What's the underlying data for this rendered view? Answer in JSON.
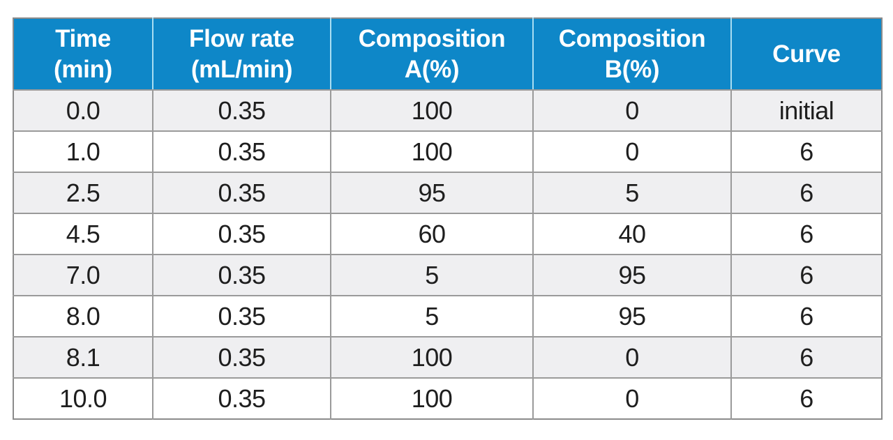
{
  "chart_data": {
    "type": "table",
    "columns": [
      "Time (min)",
      "Flow rate (mL/min)",
      "Composition A(%)",
      "Composition B(%)",
      "Curve"
    ],
    "rows": [
      [
        "0.0",
        "0.35",
        "100",
        "0",
        "initial"
      ],
      [
        "1.0",
        "0.35",
        "100",
        "0",
        "6"
      ],
      [
        "2.5",
        "0.35",
        "95",
        "5",
        "6"
      ],
      [
        "4.5",
        "0.35",
        "60",
        "40",
        "6"
      ],
      [
        "7.0",
        "0.35",
        "5",
        "95",
        "6"
      ],
      [
        "8.0",
        "0.35",
        "5",
        "95",
        "6"
      ],
      [
        "8.1",
        "0.35",
        "100",
        "0",
        "6"
      ],
      [
        "10.0",
        "0.35",
        "100",
        "0",
        "6"
      ]
    ],
    "layout": {
      "header_rows": 1,
      "striping": "odd-rows-gray",
      "grid": true
    }
  },
  "table": {
    "headers": [
      {
        "line1": "Time",
        "line2": "(min)"
      },
      {
        "line1": "Flow rate",
        "line2": "(mL/min)"
      },
      {
        "line1": "Composition",
        "line2": "A(%)"
      },
      {
        "line1": "Composition",
        "line2": "B(%)"
      },
      {
        "line1": "Curve",
        "line2": ""
      }
    ]
  },
  "colors": {
    "header_bg": "#0e87c8",
    "header_text": "#ffffff",
    "header_separator": "#a9def2",
    "row_stripe": "#efeff1",
    "row_alt": "#ffffff",
    "border_outer": "#8b8b8b",
    "border_inner": "#9a9a9a",
    "cell_text": "#1e1e1e",
    "page_background": "#ffffff"
  }
}
